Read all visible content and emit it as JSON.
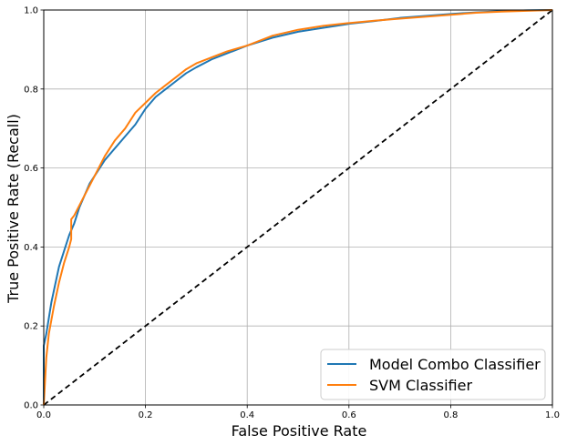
{
  "chart_data": {
    "type": "line",
    "title": "",
    "xlabel": "False Positive Rate",
    "ylabel": "True Positive Rate (Recall)",
    "xlim": [
      0,
      1
    ],
    "ylim": [
      0,
      1
    ],
    "xticks": [
      "0.0",
      "0.2",
      "0.4",
      "0.6",
      "0.8",
      "1.0"
    ],
    "yticks": [
      "0.0",
      "0.2",
      "0.4",
      "0.6",
      "0.8",
      "1.0"
    ],
    "grid": true,
    "legend_position": "lower-right",
    "series": [
      {
        "name": "Model Combo Classifier",
        "color": "#1f77b4",
        "x": [
          0,
          0.0,
          0.005,
          0.01,
          0.015,
          0.02,
          0.03,
          0.04,
          0.05,
          0.06,
          0.07,
          0.08,
          0.09,
          0.1,
          0.12,
          0.14,
          0.16,
          0.18,
          0.2,
          0.22,
          0.24,
          0.26,
          0.28,
          0.3,
          0.33,
          0.36,
          0.4,
          0.45,
          0.5,
          0.55,
          0.6,
          0.65,
          0.7,
          0.75,
          0.8,
          0.85,
          0.9,
          0.95,
          1.0
        ],
        "y": [
          0,
          0.15,
          0.18,
          0.22,
          0.26,
          0.29,
          0.35,
          0.39,
          0.43,
          0.46,
          0.5,
          0.53,
          0.56,
          0.58,
          0.62,
          0.65,
          0.68,
          0.71,
          0.75,
          0.78,
          0.8,
          0.82,
          0.84,
          0.855,
          0.875,
          0.89,
          0.91,
          0.93,
          0.945,
          0.955,
          0.965,
          0.972,
          0.98,
          0.985,
          0.99,
          0.994,
          0.997,
          0.999,
          1.0
        ]
      },
      {
        "name": "SVM Classifier",
        "color": "#ff7f0e",
        "x": [
          0,
          0.005,
          0.01,
          0.02,
          0.03,
          0.04,
          0.05,
          0.054,
          0.054,
          0.06,
          0.07,
          0.08,
          0.09,
          0.1,
          0.12,
          0.14,
          0.16,
          0.18,
          0.2,
          0.22,
          0.24,
          0.26,
          0.28,
          0.3,
          0.33,
          0.36,
          0.4,
          0.45,
          0.5,
          0.55,
          0.6,
          0.65,
          0.7,
          0.75,
          0.8,
          0.85,
          0.9,
          0.95,
          1.0
        ],
        "y": [
          0,
          0.12,
          0.18,
          0.25,
          0.31,
          0.36,
          0.4,
          0.42,
          0.47,
          0.48,
          0.505,
          0.53,
          0.555,
          0.58,
          0.63,
          0.67,
          0.7,
          0.74,
          0.765,
          0.79,
          0.81,
          0.83,
          0.85,
          0.865,
          0.88,
          0.895,
          0.91,
          0.935,
          0.95,
          0.96,
          0.967,
          0.973,
          0.978,
          0.983,
          0.988,
          0.993,
          0.996,
          0.998,
          1.0
        ]
      },
      {
        "name": "",
        "color": "#000000",
        "dashed": true,
        "x": [
          0,
          1
        ],
        "y": [
          0,
          1
        ]
      }
    ]
  }
}
